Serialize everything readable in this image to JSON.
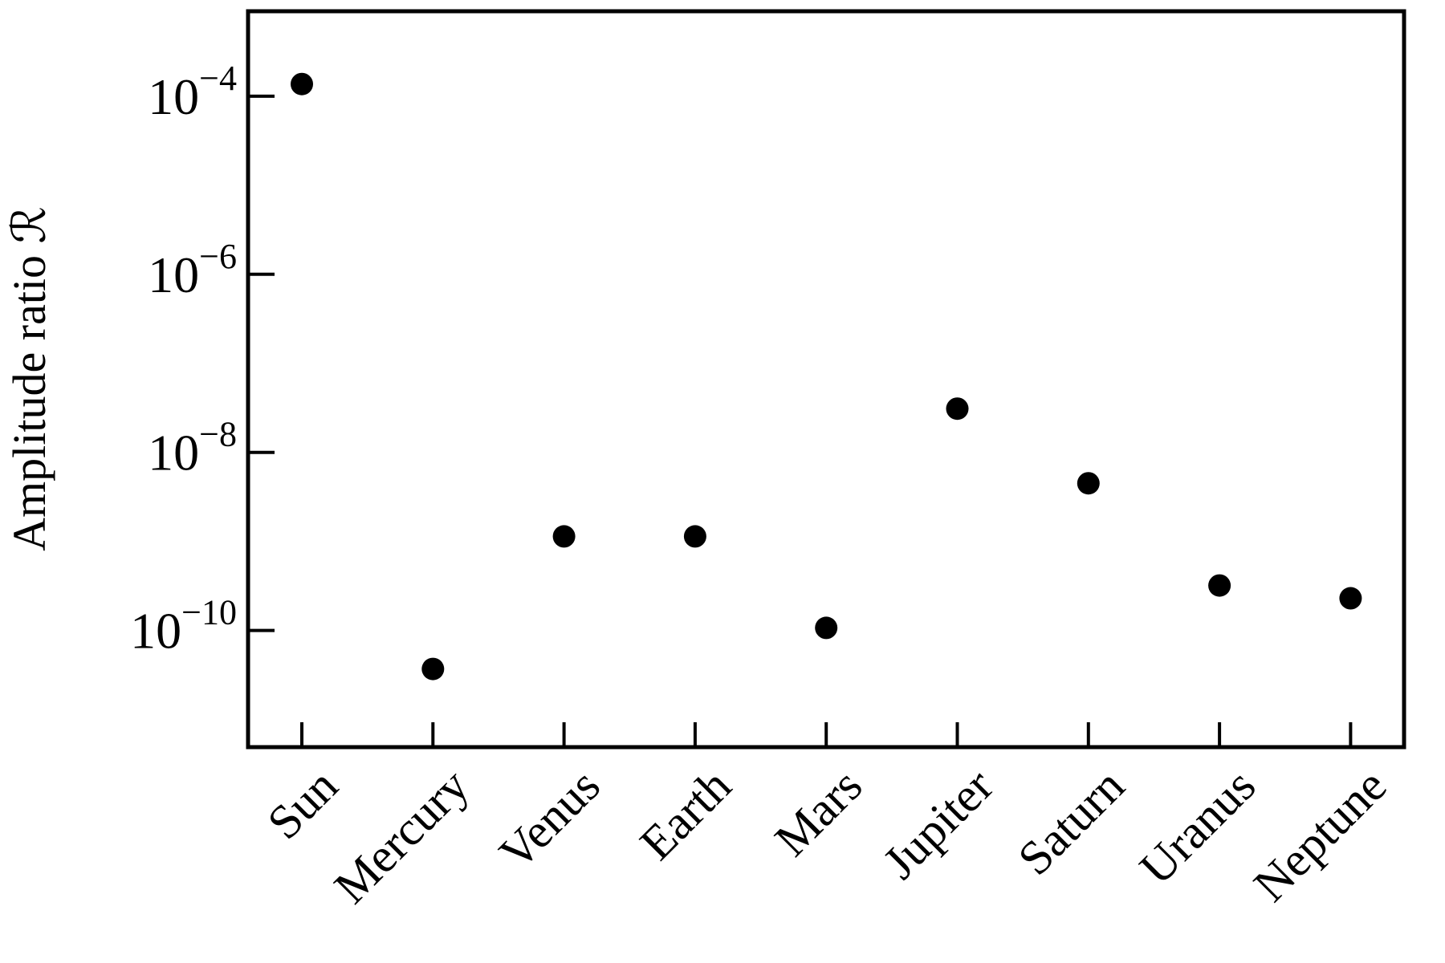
{
  "chart_data": {
    "type": "scatter",
    "y_label": "Amplitude ratio ℛ",
    "categories": [
      "Sun",
      "Mercury",
      "Venus",
      "Earth",
      "Mars",
      "Jupiter",
      "Saturn",
      "Uranus",
      "Neptune"
    ],
    "values": [
      0.000137,
      3.7e-11,
      1.14e-09,
      1.14e-09,
      1.07e-10,
      3.1e-08,
      4.5e-09,
      3.2e-10,
      2.3e-10
    ],
    "color": "#000000",
    "log_y": true,
    "grid": false,
    "ylim": [
      4.9e-12,
      0.0009
    ],
    "yticks": [
      {
        "value": 0.0001,
        "label": "10−4"
      },
      {
        "value": 1e-06,
        "label": "10−6"
      },
      {
        "value": 1e-08,
        "label": "10−8"
      },
      {
        "value": 1e-10,
        "label": "10−10"
      }
    ]
  }
}
